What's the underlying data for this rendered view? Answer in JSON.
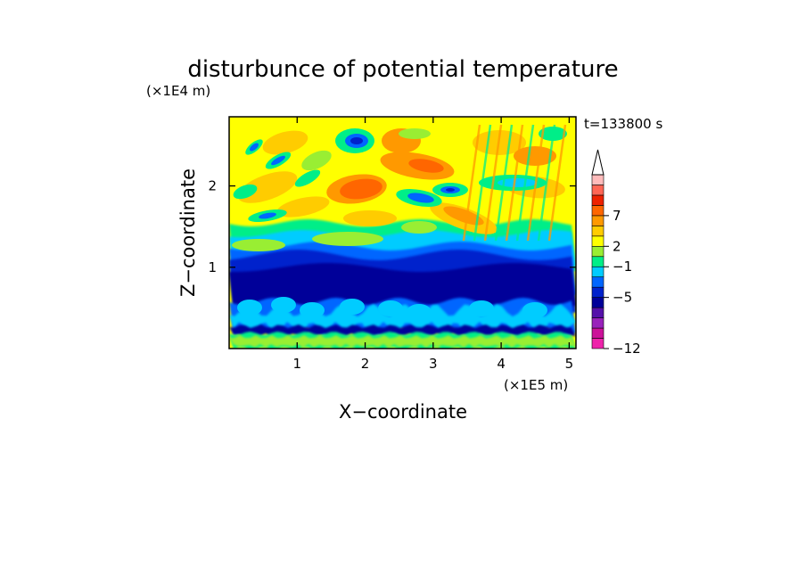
{
  "chart_data": {
    "type": "heatmap",
    "title": "disturbunce of potential temperature",
    "xlabel": "X−coordinate",
    "ylabel": "Z−coordinate",
    "x_unit": "(×1E5 m)",
    "y_unit": "(×1E4 m)",
    "time_label": "t=133800 s",
    "xlim": [
      0,
      5.1
    ],
    "ylim": [
      0,
      2.85
    ],
    "x_ticks": [
      {
        "v": 1,
        "label": "1"
      },
      {
        "v": 2,
        "label": "2"
      },
      {
        "v": 3,
        "label": "3"
      },
      {
        "v": 4,
        "label": "4"
      },
      {
        "v": 5,
        "label": "5"
      }
    ],
    "y_ticks": [
      {
        "v": 1,
        "label": "1"
      },
      {
        "v": 2,
        "label": "2"
      }
    ],
    "colorbar": {
      "colors": [
        "#ee22aa",
        "#cc1199",
        "#9922bb",
        "#5511aa",
        "#000099",
        "#0022cc",
        "#0066ff",
        "#00ccff",
        "#00ee88",
        "#99ee33",
        "#ffff00",
        "#ffcc00",
        "#ff9900",
        "#ff6600",
        "#ee2200",
        "#ff6655",
        "#ffbbbb"
      ],
      "labels": [
        {
          "index": 0,
          "text": "−12"
        },
        {
          "index": 5,
          "text": "−5"
        },
        {
          "index": 8,
          "text": "−1"
        },
        {
          "index": 10,
          "text": "2"
        },
        {
          "index": 13,
          "text": "7"
        }
      ],
      "extend_max": true
    },
    "grid": false
  }
}
